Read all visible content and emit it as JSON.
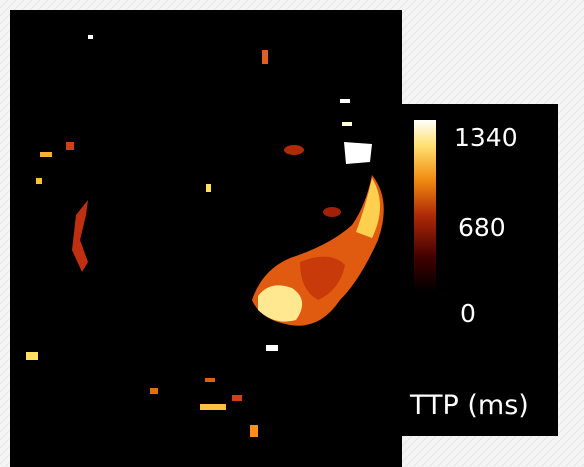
{
  "colorbar": {
    "ticks": [
      "1340",
      "680",
      "0"
    ],
    "label": "TTP (ms)"
  }
}
